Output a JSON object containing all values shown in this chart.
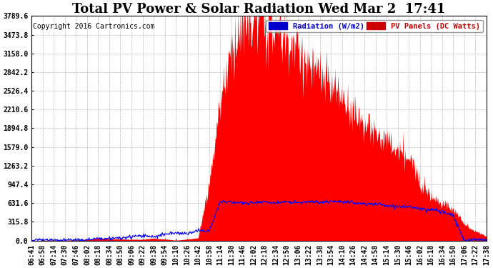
{
  "title": "Total PV Power & Solar Radiation Wed Mar 2  17:41",
  "copyright": "Copyright 2016 Cartronics.com",
  "legend_labels": [
    "Radiation (W/m2)",
    "PV Panels (DC Watts)"
  ],
  "legend_colors_bg": [
    "#0000cc",
    "#cc0000"
  ],
  "legend_colors_text": [
    "#ffffff",
    "#ffffff"
  ],
  "background_color": "#ffffff",
  "plot_bg_color": "#ffffff",
  "grid_color": "#aaaaaa",
  "y_max": 3789.6,
  "y_min": 0.0,
  "y_ticks": [
    0.0,
    315.8,
    631.6,
    947.4,
    1263.2,
    1579.0,
    1894.8,
    2210.6,
    2526.4,
    2842.2,
    3158.0,
    3473.8,
    3789.6
  ],
  "x_tick_labels": [
    "06:41",
    "06:58",
    "07:14",
    "07:30",
    "07:46",
    "08:02",
    "08:18",
    "08:34",
    "08:50",
    "09:06",
    "09:22",
    "09:38",
    "09:54",
    "10:10",
    "10:26",
    "10:42",
    "10:58",
    "11:14",
    "11:30",
    "11:46",
    "12:02",
    "12:18",
    "12:34",
    "12:50",
    "13:06",
    "13:22",
    "13:38",
    "13:54",
    "14:10",
    "14:26",
    "14:42",
    "14:58",
    "15:14",
    "15:30",
    "15:46",
    "16:02",
    "16:18",
    "16:34",
    "16:50",
    "17:06",
    "17:22",
    "17:38"
  ],
  "pv_color": "#ff0000",
  "radiation_color": "#0000ff",
  "title_fontsize": 13,
  "copyright_fontsize": 7,
  "tick_fontsize": 7,
  "legend_fontsize": 7.5
}
